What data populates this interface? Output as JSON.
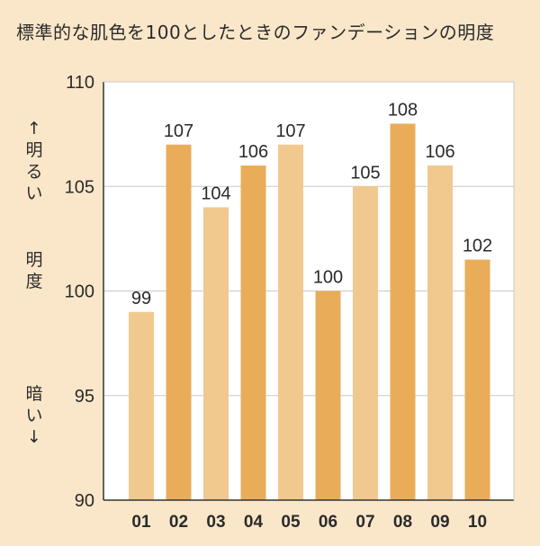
{
  "title": "標準的な肌色を100としたときのファンデーションの明度",
  "ylabel": {
    "bright": "↑明るい",
    "middle": "明度",
    "dark": "暗い↓"
  },
  "colors": {
    "light_bar": "#f1c98e",
    "dark_bar": "#e9ad59",
    "plot_bg": "#ffffff",
    "grid": "#c9c9c9",
    "axis": "#333333"
  },
  "chart_data": {
    "type": "bar",
    "title": "標準的な肌色を100としたときのファンデーションの明度",
    "categories": [
      "01",
      "02",
      "03",
      "04",
      "05",
      "06",
      "07",
      "08",
      "09",
      "10"
    ],
    "values": [
      99,
      107,
      104,
      106,
      107,
      100,
      105,
      108,
      106,
      102
    ],
    "bar_heights": [
      99,
      107,
      104,
      106,
      107,
      100,
      105,
      108,
      106,
      101.5
    ],
    "value_labels": [
      "99",
      "107",
      "104",
      "106",
      "107",
      "100",
      "105",
      "108",
      "106",
      "102"
    ],
    "bar_colors": [
      "light",
      "dark",
      "light",
      "dark",
      "light",
      "dark",
      "light",
      "dark",
      "light",
      "dark"
    ],
    "ylim": [
      90,
      110
    ],
    "yticks": [
      "90",
      "95",
      "100",
      "105",
      "110"
    ],
    "grid": true,
    "legend": "none"
  }
}
